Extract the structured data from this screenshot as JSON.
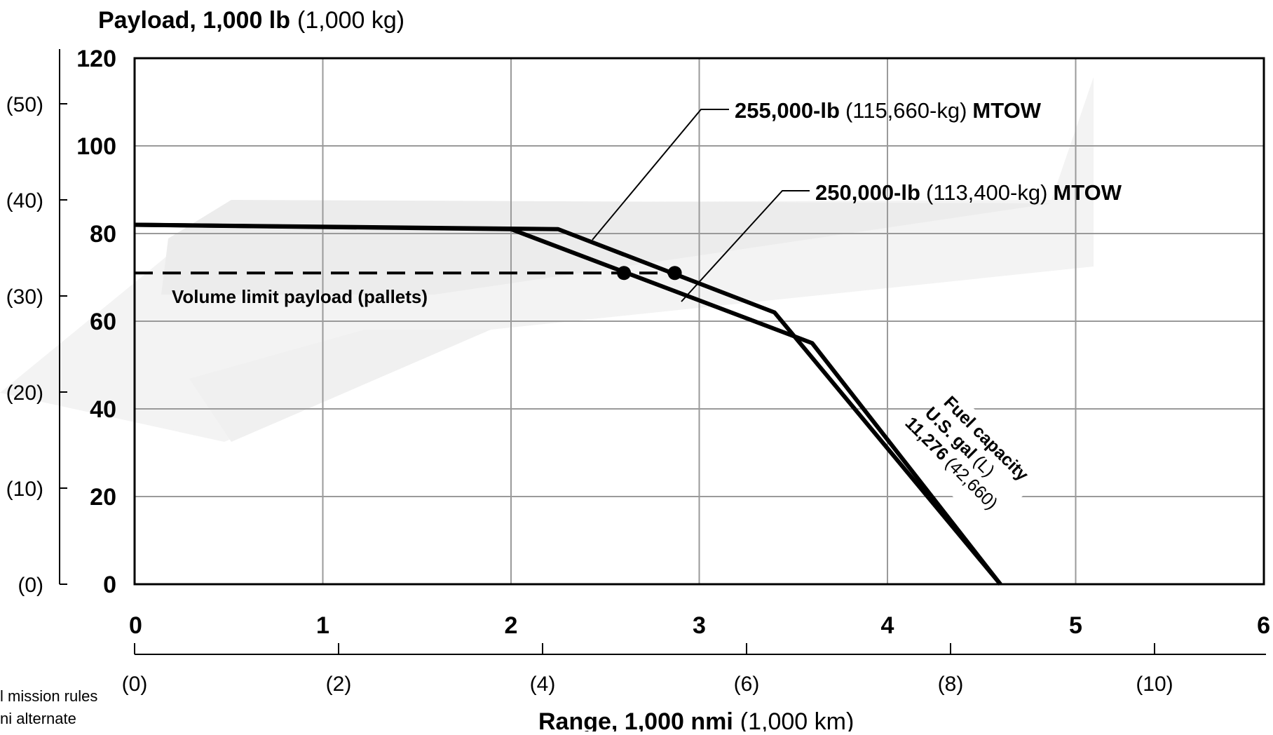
{
  "chart_data": {
    "type": "line",
    "title": "",
    "ylabel": {
      "bold": "Payload, 1,000 lb",
      "normal": "(1,000 kg)"
    },
    "xlabel": {
      "bold": "Range, 1,000 nmi",
      "normal": "(1,000 km)"
    },
    "xlim": [
      0,
      6
    ],
    "ylim": [
      0,
      120
    ],
    "grid": true,
    "x_ticks": [
      "0",
      "1",
      "2",
      "3",
      "4",
      "5",
      "6"
    ],
    "y_ticks": [
      "0",
      "20",
      "40",
      "60",
      "80",
      "100",
      "120"
    ],
    "secondary_x_ticks": [
      "(0)",
      "(2)",
      "(4)",
      "(6)",
      "(8)",
      "(10)"
    ],
    "secondary_y_ticks": [
      "(0)",
      "(10)",
      "(20)",
      "(30)",
      "(40)",
      "(50)"
    ],
    "series": [
      {
        "name": "255,000-lb (115,660-kg) MTOW",
        "label_bold_1": "255,000-lb",
        "label_normal": "(115,660-kg)",
        "label_bold_2": "MTOW",
        "points": [
          [
            0,
            82
          ],
          [
            2.25,
            81
          ],
          [
            3.4,
            62
          ],
          [
            4.6,
            0
          ]
        ],
        "volume_limit_point": [
          2.87,
          71
        ]
      },
      {
        "name": "250,000-lb (113,400-kg) MTOW",
        "label_bold_1": "250,000-lb",
        "label_normal": "(113,400-kg)",
        "label_bold_2": "MTOW",
        "points": [
          [
            0,
            82
          ],
          [
            2.0,
            81
          ],
          [
            3.6,
            55
          ],
          [
            4.6,
            0
          ]
        ],
        "volume_limit_point": [
          2.6,
          71
        ]
      }
    ],
    "reference_lines": [
      {
        "label": "Volume limit payload (pallets)",
        "y": 71,
        "x_range": [
          0,
          2.87
        ],
        "style": "dashed"
      }
    ],
    "annotations": {
      "fuel_line1": "Fuel capacity",
      "fuel_line2_bold": "U.S. gal",
      "fuel_line2_normal": "(L)",
      "fuel_line3_bold": "11,276",
      "fuel_line3_normal": "(42,660)"
    },
    "footnote_lines": [
      "l mission rules",
      "ni alternate"
    ]
  }
}
